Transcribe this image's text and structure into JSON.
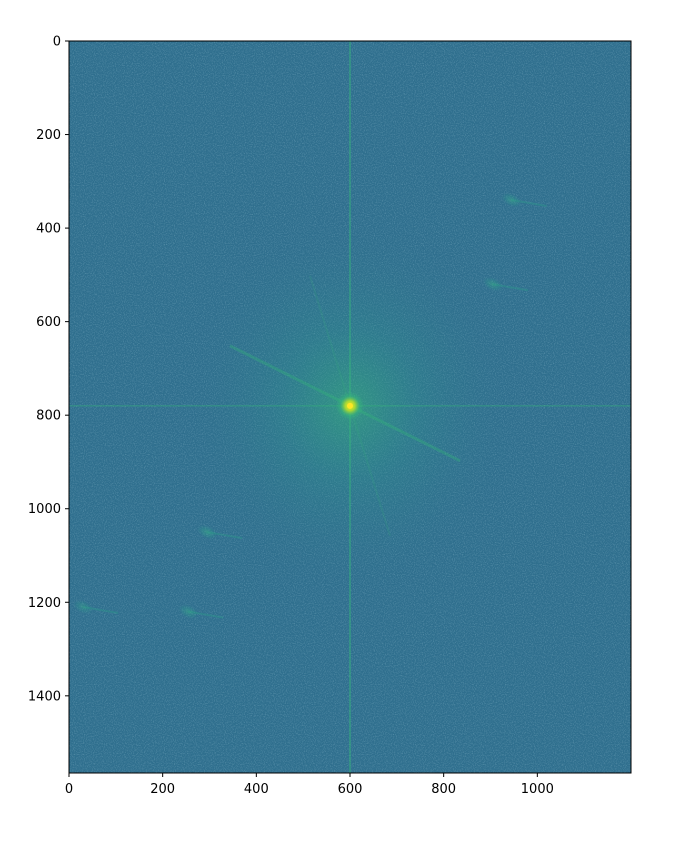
{
  "chart_data": {
    "type": "heatmap",
    "title": "",
    "xlabel": "",
    "ylabel": "",
    "colormap": "viridis",
    "xlim": [
      0,
      1200
    ],
    "ylim": [
      1565,
      0
    ],
    "x_ticks": [
      0,
      200,
      400,
      600,
      800,
      1000
    ],
    "y_ticks": [
      0,
      200,
      400,
      600,
      800,
      1000,
      1200,
      1400
    ],
    "background_level": 0.42,
    "cross_lines": {
      "x": 600,
      "y": 780
    },
    "peaks": [
      {
        "x": 600,
        "y": 780,
        "intensity": 1.0
      },
      {
        "x": 945,
        "y": 340,
        "intensity": 0.58
      },
      {
        "x": 905,
        "y": 520,
        "intensity": 0.6
      },
      {
        "x": 295,
        "y": 1050,
        "intensity": 0.6
      },
      {
        "x": 255,
        "y": 1220,
        "intensity": 0.57
      },
      {
        "x": 30,
        "y": 1210,
        "intensity": 0.5
      }
    ]
  },
  "colors": {
    "background": "#2f6f8e",
    "cross_line": "#35b779",
    "center_peak": "#fde725"
  }
}
